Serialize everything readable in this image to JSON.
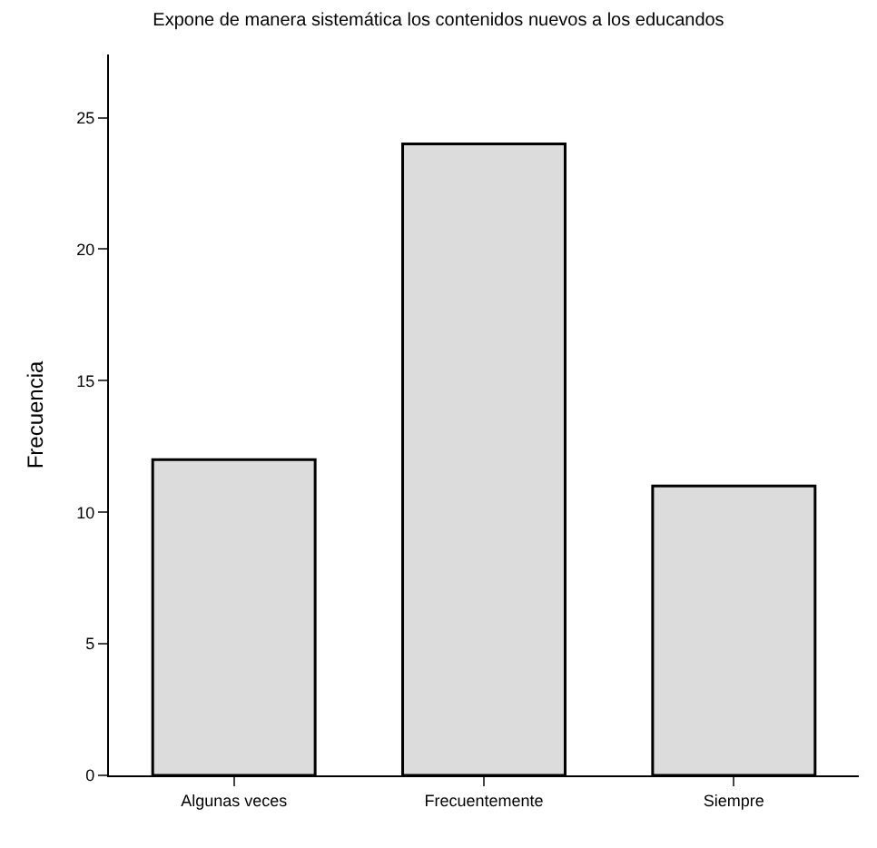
{
  "chart_data": {
    "type": "bar",
    "title": "Expone de manera sistemática los contenidos nuevos a los educandos",
    "ylabel": "Frecuencia",
    "categories": [
      "Algunas veces",
      "Frecuentemente",
      "Siempre"
    ],
    "values": [
      12,
      24,
      11
    ],
    "color": "#dcdcdc",
    "ylim": [
      0,
      27.4
    ],
    "yticks": [
      0,
      5,
      10,
      15,
      20,
      25
    ]
  }
}
